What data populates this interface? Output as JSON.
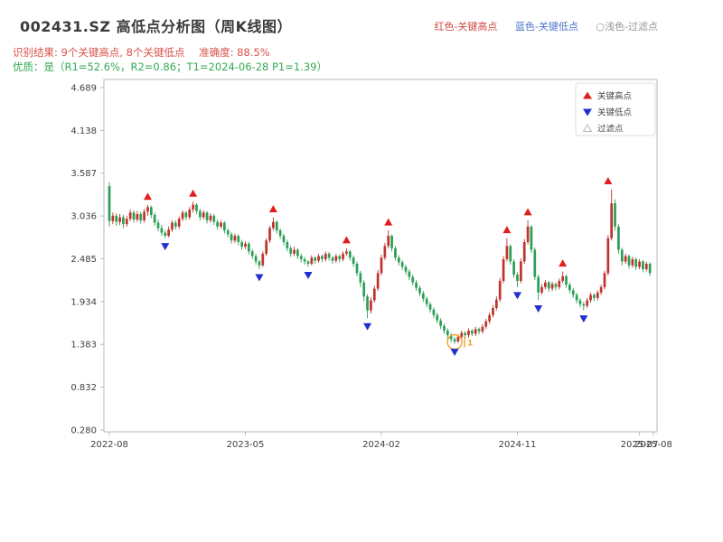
{
  "header": {
    "title": "002431.SZ 高低点分析图（周K线图）",
    "color_legend": [
      {
        "label": "红色-关键高点",
        "color": "#cf4a42"
      },
      {
        "label": "蓝色-关键低点",
        "color": "#4a74c9"
      },
      {
        "label": "○浅色-过滤点",
        "color": "#949494"
      }
    ],
    "result_text": "识别结果: 9个关键高点, 8个关键低点",
    "accuracy_text": "准确度: 88.5%",
    "quality_text": "优质：是（R1=52.6%，R2=0.86；T1=2024-06-28 P1=1.39）"
  },
  "chart_data": {
    "type": "candlestick",
    "title": "002431.SZ 高低点分析图（周K线图）",
    "frequency": "weekly",
    "start_date": "2022-08-05",
    "interval_days": 7,
    "grid": false,
    "legend_position": "upper right",
    "ohlc_format": [
      "open",
      "high",
      "low",
      "close"
    ],
    "colors": {
      "up": "#c0332b",
      "down": "#2c9e57",
      "key_high": "#e01f1f",
      "key_low": "#1f2fd0",
      "filtered": "#b8b8b8",
      "highlight": "#f0a22e",
      "axis": "#b9b9b9",
      "tick_text": "#3f3f3f"
    },
    "y_axis": {
      "ticks": [
        4.689,
        4.138,
        3.587,
        3.036,
        2.485,
        1.934,
        1.383,
        0.832,
        0.28
      ],
      "min": 0.28,
      "max": 4.689
    },
    "x_axis": {
      "max_week": 156,
      "ticks": [
        {
          "label": "2022-08",
          "week": 0
        },
        {
          "label": "2023-05",
          "week": 39
        },
        {
          "label": "2024-02",
          "week": 78
        },
        {
          "label": "2024-11",
          "week": 117
        },
        {
          "label": "2025-07",
          "week": 152
        },
        {
          "label": "2025-08",
          "week": 156
        }
      ]
    },
    "legend": {
      "items": [
        {
          "label": "关键高点",
          "marker": "up-filled"
        },
        {
          "label": "关键低点",
          "marker": "down-filled"
        },
        {
          "label": "过滤点",
          "marker": "up-hollow"
        }
      ]
    },
    "stats": {
      "key_high_count": 9,
      "key_low_count": 8,
      "accuracy": "88.5%",
      "quality": "是",
      "R1": "52.6%",
      "R2": "0.86",
      "T1": "2024-06-28",
      "P1": "1.39"
    },
    "key_highs": [
      {
        "week": 11,
        "date": "2022-10-21",
        "price": 3.18
      },
      {
        "week": 24,
        "date": "2023-01-20",
        "price": 3.22
      },
      {
        "week": 47,
        "date": "2023-06-30",
        "price": 3.02
      },
      {
        "week": 68,
        "date": "2023-11-24",
        "price": 2.62
      },
      {
        "week": 80,
        "date": "2024-02-16",
        "price": 2.85
      },
      {
        "week": 114,
        "date": "2024-10-11",
        "price": 2.75
      },
      {
        "week": 120,
        "date": "2024-11-22",
        "price": 2.98
      },
      {
        "week": 130,
        "date": "2025-01-31",
        "price": 2.32
      },
      {
        "week": 143,
        "date": "2025-05-02",
        "price": 3.38
      }
    ],
    "key_lows": [
      {
        "week": 16,
        "date": "2022-11-25",
        "price": 2.75
      },
      {
        "week": 43,
        "date": "2023-06-02",
        "price": 2.35
      },
      {
        "week": 57,
        "date": "2023-09-08",
        "price": 2.38
      },
      {
        "week": 74,
        "date": "2024-01-05",
        "price": 1.72
      },
      {
        "week": 99,
        "date": "2024-06-28",
        "price": 1.39
      },
      {
        "week": 117,
        "date": "2024-11-01",
        "price": 2.12
      },
      {
        "week": 123,
        "date": "2024-12-13",
        "price": 1.95
      },
      {
        "week": 136,
        "date": "2025-03-14",
        "price": 1.82
      }
    ],
    "filtered_points": [],
    "t1_annotation": {
      "week": 99,
      "date": "2024-06-28",
      "price": 1.39,
      "label": "1"
    },
    "candles": [
      [
        3.42,
        3.47,
        2.9,
        2.97
      ],
      [
        2.97,
        3.08,
        2.93,
        3.04
      ],
      [
        3.04,
        3.07,
        2.91,
        2.96
      ],
      [
        2.96,
        3.06,
        2.92,
        3.02
      ],
      [
        3.02,
        3.05,
        2.88,
        2.93
      ],
      [
        2.93,
        3.04,
        2.9,
        3.0
      ],
      [
        3.0,
        3.12,
        2.97,
        3.08
      ],
      [
        3.08,
        3.11,
        2.95,
        2.99
      ],
      [
        2.99,
        3.1,
        2.96,
        3.06
      ],
      [
        3.06,
        3.09,
        2.94,
        2.98
      ],
      [
        2.98,
        3.13,
        2.95,
        3.09
      ],
      [
        3.09,
        3.18,
        3.04,
        3.15
      ],
      [
        3.15,
        3.17,
        3.01,
        3.05
      ],
      [
        3.05,
        3.08,
        2.91,
        2.95
      ],
      [
        2.95,
        2.99,
        2.84,
        2.88
      ],
      [
        2.88,
        2.92,
        2.78,
        2.82
      ],
      [
        2.82,
        2.85,
        2.75,
        2.78
      ],
      [
        2.78,
        2.9,
        2.76,
        2.86
      ],
      [
        2.86,
        2.98,
        2.83,
        2.95
      ],
      [
        2.95,
        2.98,
        2.86,
        2.9
      ],
      [
        2.9,
        3.03,
        2.87,
        3.0
      ],
      [
        3.0,
        3.11,
        2.97,
        3.08
      ],
      [
        3.08,
        3.1,
        2.98,
        3.02
      ],
      [
        3.02,
        3.15,
        2.99,
        3.12
      ],
      [
        3.12,
        3.22,
        3.08,
        3.18
      ],
      [
        3.18,
        3.2,
        3.06,
        3.1
      ],
      [
        3.1,
        3.13,
        2.98,
        3.02
      ],
      [
        3.02,
        3.11,
        2.99,
        3.08
      ],
      [
        3.08,
        3.1,
        2.94,
        2.98
      ],
      [
        2.98,
        3.07,
        2.95,
        3.04
      ],
      [
        3.04,
        3.06,
        2.92,
        2.96
      ],
      [
        2.96,
        2.99,
        2.86,
        2.9
      ],
      [
        2.9,
        2.98,
        2.87,
        2.95
      ],
      [
        2.95,
        2.97,
        2.81,
        2.85
      ],
      [
        2.85,
        2.88,
        2.76,
        2.8
      ],
      [
        2.8,
        2.83,
        2.68,
        2.72
      ],
      [
        2.72,
        2.81,
        2.69,
        2.78
      ],
      [
        2.78,
        2.8,
        2.66,
        2.7
      ],
      [
        2.7,
        2.73,
        2.6,
        2.64
      ],
      [
        2.64,
        2.71,
        2.61,
        2.68
      ],
      [
        2.68,
        2.7,
        2.54,
        2.58
      ],
      [
        2.58,
        2.61,
        2.48,
        2.52
      ],
      [
        2.52,
        2.55,
        2.41,
        2.45
      ],
      [
        2.45,
        2.47,
        2.35,
        2.4
      ],
      [
        2.4,
        2.58,
        2.38,
        2.55
      ],
      [
        2.55,
        2.75,
        2.52,
        2.72
      ],
      [
        2.72,
        2.91,
        2.69,
        2.88
      ],
      [
        2.88,
        3.02,
        2.85,
        2.96
      ],
      [
        2.96,
        2.98,
        2.81,
        2.85
      ],
      [
        2.85,
        2.88,
        2.74,
        2.78
      ],
      [
        2.78,
        2.81,
        2.66,
        2.7
      ],
      [
        2.7,
        2.73,
        2.58,
        2.62
      ],
      [
        2.62,
        2.65,
        2.51,
        2.55
      ],
      [
        2.55,
        2.64,
        2.52,
        2.6
      ],
      [
        2.6,
        2.62,
        2.48,
        2.52
      ],
      [
        2.52,
        2.55,
        2.44,
        2.48
      ],
      [
        2.48,
        2.51,
        2.41,
        2.45
      ],
      [
        2.45,
        2.47,
        2.38,
        2.42
      ],
      [
        2.42,
        2.53,
        2.4,
        2.5
      ],
      [
        2.5,
        2.52,
        2.42,
        2.46
      ],
      [
        2.46,
        2.55,
        2.43,
        2.52
      ],
      [
        2.52,
        2.54,
        2.44,
        2.48
      ],
      [
        2.48,
        2.58,
        2.45,
        2.55
      ],
      [
        2.55,
        2.57,
        2.46,
        2.5
      ],
      [
        2.5,
        2.52,
        2.42,
        2.46
      ],
      [
        2.46,
        2.55,
        2.43,
        2.52
      ],
      [
        2.52,
        2.54,
        2.44,
        2.48
      ],
      [
        2.48,
        2.58,
        2.45,
        2.55
      ],
      [
        2.55,
        2.62,
        2.52,
        2.58
      ],
      [
        2.58,
        2.6,
        2.46,
        2.5
      ],
      [
        2.5,
        2.53,
        2.38,
        2.42
      ],
      [
        2.42,
        2.45,
        2.26,
        2.3
      ],
      [
        2.3,
        2.33,
        2.12,
        2.18
      ],
      [
        2.18,
        2.21,
        1.94,
        2.0
      ],
      [
        2.0,
        2.03,
        1.72,
        1.82
      ],
      [
        1.82,
        1.99,
        1.78,
        1.95
      ],
      [
        1.95,
        2.14,
        1.92,
        2.1
      ],
      [
        2.1,
        2.34,
        2.07,
        2.3
      ],
      [
        2.3,
        2.54,
        2.27,
        2.5
      ],
      [
        2.5,
        2.69,
        2.47,
        2.65
      ],
      [
        2.65,
        2.85,
        2.62,
        2.78
      ],
      [
        2.78,
        2.8,
        2.58,
        2.62
      ],
      [
        2.62,
        2.65,
        2.46,
        2.5
      ],
      [
        2.5,
        2.53,
        2.4,
        2.44
      ],
      [
        2.44,
        2.47,
        2.34,
        2.38
      ],
      [
        2.38,
        2.41,
        2.28,
        2.32
      ],
      [
        2.32,
        2.35,
        2.21,
        2.25
      ],
      [
        2.25,
        2.28,
        2.14,
        2.18
      ],
      [
        2.18,
        2.21,
        2.07,
        2.11
      ],
      [
        2.11,
        2.14,
        2.0,
        2.04
      ],
      [
        2.04,
        2.07,
        1.93,
        1.97
      ],
      [
        1.97,
        2.0,
        1.86,
        1.9
      ],
      [
        1.9,
        1.93,
        1.79,
        1.83
      ],
      [
        1.83,
        1.86,
        1.72,
        1.76
      ],
      [
        1.76,
        1.79,
        1.65,
        1.69
      ],
      [
        1.69,
        1.72,
        1.58,
        1.62
      ],
      [
        1.62,
        1.65,
        1.52,
        1.56
      ],
      [
        1.56,
        1.59,
        1.46,
        1.5
      ],
      [
        1.5,
        1.53,
        1.41,
        1.45
      ],
      [
        1.45,
        1.48,
        1.39,
        1.42
      ],
      [
        1.42,
        1.51,
        1.4,
        1.48
      ],
      [
        1.48,
        1.56,
        1.45,
        1.53
      ],
      [
        1.53,
        1.55,
        1.46,
        1.5
      ],
      [
        1.5,
        1.59,
        1.47,
        1.56
      ],
      [
        1.56,
        1.58,
        1.49,
        1.52
      ],
      [
        1.52,
        1.61,
        1.49,
        1.58
      ],
      [
        1.58,
        1.6,
        1.51,
        1.55
      ],
      [
        1.55,
        1.64,
        1.52,
        1.61
      ],
      [
        1.61,
        1.71,
        1.58,
        1.68
      ],
      [
        1.68,
        1.79,
        1.65,
        1.76
      ],
      [
        1.76,
        1.89,
        1.73,
        1.85
      ],
      [
        1.85,
        2.0,
        1.82,
        1.96
      ],
      [
        1.96,
        2.24,
        1.93,
        2.2
      ],
      [
        2.2,
        2.52,
        2.17,
        2.48
      ],
      [
        2.48,
        2.75,
        2.45,
        2.65
      ],
      [
        2.65,
        2.67,
        2.41,
        2.45
      ],
      [
        2.45,
        2.48,
        2.24,
        2.28
      ],
      [
        2.28,
        2.31,
        2.12,
        2.2
      ],
      [
        2.2,
        2.49,
        2.17,
        2.45
      ],
      [
        2.45,
        2.74,
        2.42,
        2.7
      ],
      [
        2.7,
        2.98,
        2.67,
        2.9
      ],
      [
        2.9,
        2.92,
        2.56,
        2.6
      ],
      [
        2.6,
        2.63,
        2.21,
        2.25
      ],
      [
        2.25,
        2.28,
        1.95,
        2.05
      ],
      [
        2.05,
        2.16,
        2.02,
        2.12
      ],
      [
        2.12,
        2.21,
        2.09,
        2.18
      ],
      [
        2.18,
        2.2,
        2.06,
        2.1
      ],
      [
        2.1,
        2.19,
        2.07,
        2.16
      ],
      [
        2.16,
        2.18,
        2.08,
        2.12
      ],
      [
        2.12,
        2.23,
        2.09,
        2.2
      ],
      [
        2.2,
        2.32,
        2.17,
        2.26
      ],
      [
        2.26,
        2.28,
        2.11,
        2.15
      ],
      [
        2.15,
        2.18,
        2.04,
        2.08
      ],
      [
        2.08,
        2.11,
        1.98,
        2.02
      ],
      [
        2.02,
        2.05,
        1.91,
        1.95
      ],
      [
        1.95,
        1.98,
        1.86,
        1.9
      ],
      [
        1.9,
        1.93,
        1.82,
        1.88
      ],
      [
        1.88,
        1.98,
        1.85,
        1.95
      ],
      [
        1.95,
        2.05,
        1.92,
        2.02
      ],
      [
        2.02,
        2.04,
        1.94,
        1.98
      ],
      [
        1.98,
        2.08,
        1.95,
        2.05
      ],
      [
        2.05,
        2.15,
        2.02,
        2.12
      ],
      [
        2.12,
        2.33,
        2.09,
        2.3
      ],
      [
        2.3,
        2.79,
        2.27,
        2.75
      ],
      [
        2.75,
        3.38,
        2.72,
        3.2
      ],
      [
        3.2,
        3.25,
        2.85,
        2.9
      ],
      [
        2.9,
        2.93,
        2.55,
        2.6
      ],
      [
        2.6,
        2.63,
        2.4,
        2.45
      ],
      [
        2.45,
        2.55,
        2.42,
        2.52
      ],
      [
        2.52,
        2.54,
        2.36,
        2.4
      ],
      [
        2.4,
        2.51,
        2.37,
        2.48
      ],
      [
        2.48,
        2.5,
        2.34,
        2.38
      ],
      [
        2.38,
        2.48,
        2.35,
        2.45
      ],
      [
        2.45,
        2.47,
        2.31,
        2.35
      ],
      [
        2.35,
        2.45,
        2.32,
        2.42
      ],
      [
        2.42,
        2.44,
        2.26,
        2.3
      ]
    ]
  }
}
